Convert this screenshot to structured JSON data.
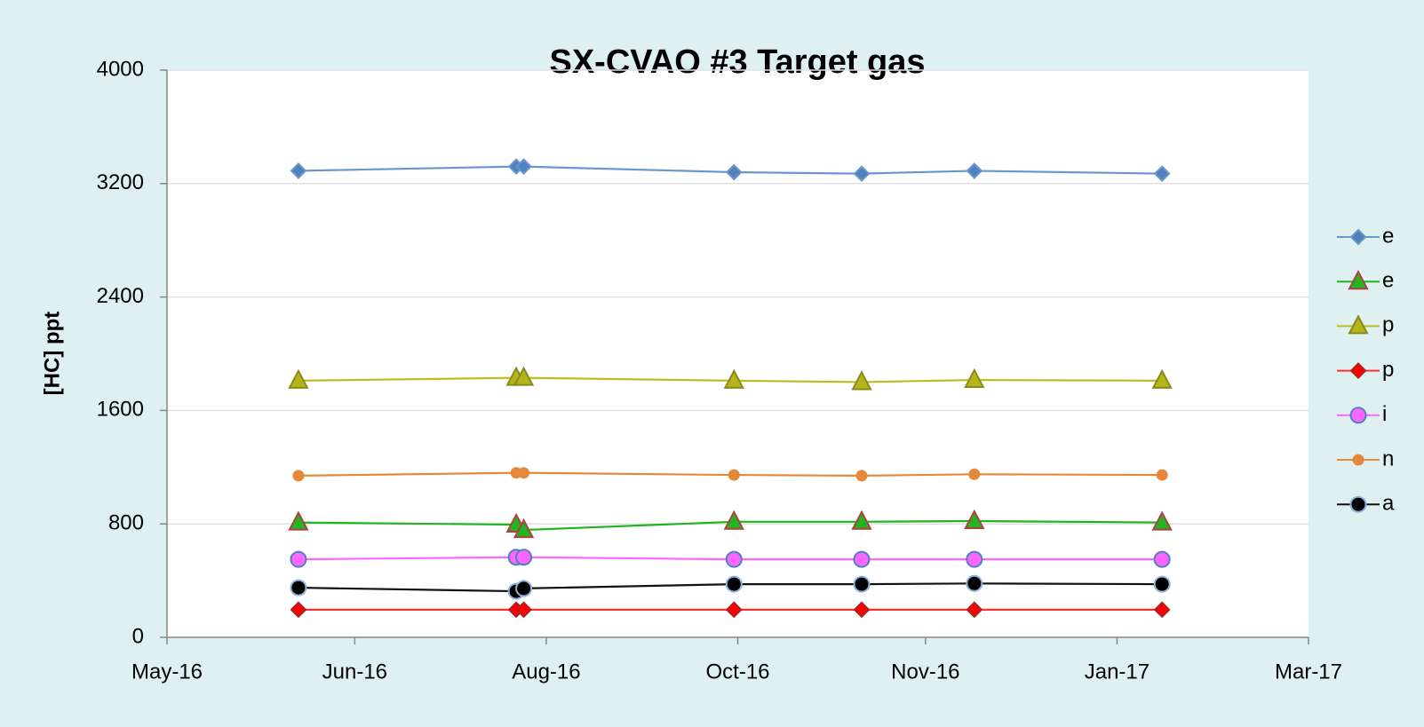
{
  "chart_data": {
    "type": "line",
    "title": "SX-CVAO #3 Target gas",
    "y_label": "[HC] ppt",
    "x": [
      "2016-06-05",
      "2016-08-02",
      "2016-08-04",
      "2016-09-29",
      "2016-11-02",
      "2016-12-02",
      "2017-01-21"
    ],
    "xlim": [
      "2016-05-01",
      "2017-03-01"
    ],
    "xticks": [
      {
        "value": "2016-05-01",
        "label": "May-16"
      },
      {
        "value": "2016-06-20",
        "label": "Jun-16"
      },
      {
        "value": "2016-08-10",
        "label": "Aug-16"
      },
      {
        "value": "2016-09-30",
        "label": "Oct-16"
      },
      {
        "value": "2016-11-19",
        "label": "Nov-16"
      },
      {
        "value": "2017-01-09",
        "label": "Jan-17"
      },
      {
        "value": "2017-03-01",
        "label": "Mar-17"
      }
    ],
    "ylim": [
      0,
      4000
    ],
    "yticks": [
      0,
      800,
      1600,
      2400,
      3200,
      4000
    ],
    "grid": true,
    "series": [
      {
        "name": "e",
        "color": "#6a96d0",
        "marker": "diamond",
        "marker_fill": "#4f81bd",
        "marker_edge": "#6a96d0",
        "values": [
          3290,
          3320,
          3320,
          3280,
          3270,
          3290,
          3270
        ]
      },
      {
        "name": "e",
        "color": "#1fb51f",
        "marker": "triangle",
        "marker_fill": "#22b522",
        "marker_edge": "#b0403d",
        "values": [
          810,
          795,
          757,
          815,
          815,
          820,
          810
        ]
      },
      {
        "name": "p",
        "color": "#bdbd22",
        "marker": "triangle",
        "marker_fill": "#b5b51a",
        "marker_edge": "#8a8a1a",
        "values": [
          1810,
          1830,
          1830,
          1810,
          1800,
          1815,
          1810
        ]
      },
      {
        "name": "p",
        "color": "#ff3030",
        "marker": "diamond",
        "marker_fill": "#ff0000",
        "marker_edge": "#b02020",
        "values": [
          195,
          195,
          195,
          195,
          195,
          195,
          195
        ]
      },
      {
        "name": "i",
        "color": "#ff66ff",
        "marker": "circle",
        "marker_fill": "#ff66ff",
        "marker_edge": "#4f81bd",
        "values": [
          550,
          565,
          565,
          550,
          550,
          550,
          550
        ]
      },
      {
        "name": "n",
        "color": "#e6883a",
        "marker": "dot",
        "marker_fill": "#e6883a",
        "marker_edge": "#e6883a",
        "values": [
          1140,
          1160,
          1160,
          1145,
          1140,
          1150,
          1145
        ]
      },
      {
        "name": "a",
        "color": "#111111",
        "marker": "circle",
        "marker_fill": "#000000",
        "marker_edge": "#8fb0d8",
        "values": [
          350,
          325,
          345,
          375,
          375,
          380,
          375
        ]
      }
    ]
  }
}
